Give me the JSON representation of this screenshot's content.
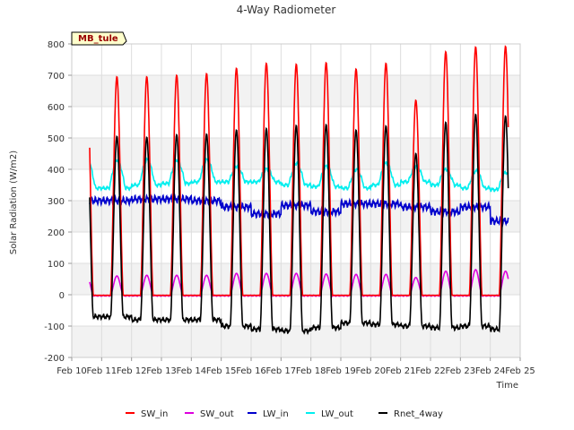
{
  "chart_data": {
    "type": "line",
    "title": "4-Way Radiometer",
    "xlabel": "Time",
    "ylabel": "Solar Radiation (W/m2)",
    "annotation": "MB_tule",
    "xlim": [
      10,
      25
    ],
    "ylim": [
      -200,
      800
    ],
    "x_ticks": [
      10,
      11,
      12,
      13,
      14,
      15,
      16,
      17,
      18,
      19,
      20,
      21,
      22,
      23,
      24,
      25
    ],
    "x_tick_labels": [
      "Feb 10",
      "Feb 11",
      "Feb 12",
      "Feb 13",
      "Feb 14",
      "Feb 15",
      "Feb 16",
      "Feb 17",
      "Feb 18",
      "Feb 19",
      "Feb 20",
      "Feb 21",
      "Feb 22",
      "Feb 23",
      "Feb 24",
      "Feb 25"
    ],
    "y_ticks": [
      -200,
      -100,
      0,
      100,
      200,
      300,
      400,
      500,
      600,
      700,
      800
    ],
    "y_tick_labels": [
      "-200",
      "-100",
      "0",
      "100",
      "200",
      "300",
      "400",
      "500",
      "600",
      "700",
      "800"
    ],
    "grid": true,
    "legend_position": "bottom",
    "colors": {
      "SW_in": "#ff0000",
      "SW_out": "#dd00dd",
      "LW_in": "#0000cc",
      "LW_out": "#00eeee",
      "Rnet_4way": "#000000"
    },
    "daily": {
      "days": [
        11,
        12,
        13,
        14,
        15,
        16,
        17,
        18,
        19,
        20,
        21,
        22,
        23,
        24
      ],
      "SW_in_peak": [
        695,
        695,
        700,
        705,
        722,
        738,
        735,
        740,
        720,
        738,
        620,
        775,
        790,
        792
      ],
      "SW_out_peak": [
        60,
        62,
        62,
        62,
        68,
        68,
        68,
        66,
        65,
        65,
        55,
        75,
        80,
        75
      ],
      "LW_in_level": [
        300,
        305,
        305,
        300,
        280,
        258,
        285,
        265,
        290,
        290,
        280,
        265,
        280,
        235
      ],
      "LW_out_peak": [
        430,
        430,
        430,
        430,
        410,
        400,
        420,
        410,
        400,
        420,
        410,
        400,
        395,
        390
      ],
      "LW_out_night": [
        340,
        350,
        355,
        360,
        360,
        360,
        350,
        345,
        340,
        350,
        360,
        350,
        340,
        335
      ],
      "Rnet_4way_peak": [
        505,
        502,
        510,
        512,
        525,
        530,
        540,
        542,
        525,
        538,
        450,
        550,
        575,
        570
      ],
      "Rnet_4way_night": [
        -70,
        -80,
        -80,
        -80,
        -100,
        -110,
        -115,
        -105,
        -90,
        -95,
        -100,
        -105,
        -100,
        -110
      ]
    },
    "series": [
      {
        "name": "SW_in"
      },
      {
        "name": "SW_out"
      },
      {
        "name": "LW_in"
      },
      {
        "name": "LW_out"
      },
      {
        "name": "Rnet_4way"
      }
    ]
  }
}
